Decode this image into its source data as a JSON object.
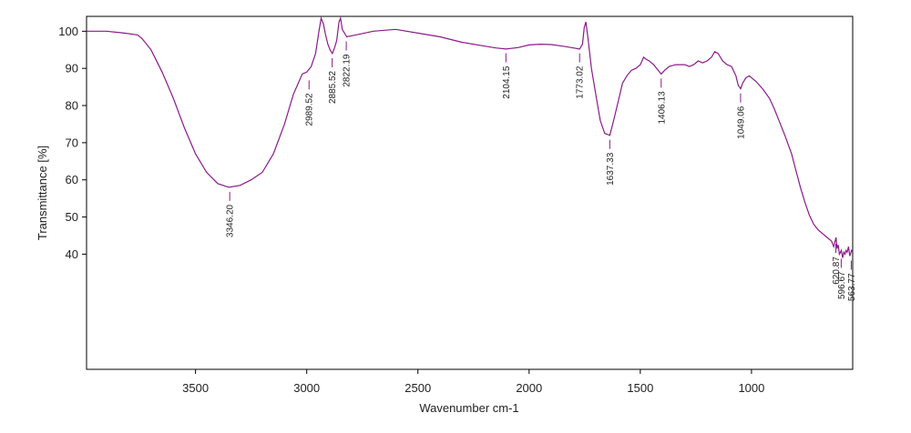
{
  "chart_data": {
    "type": "line",
    "title": "",
    "xlabel": "Wavenumber cm-1",
    "ylabel": "Transmittance [%]",
    "xlim": [
      3990,
      545
    ],
    "ylim": [
      9,
      104
    ],
    "x_reversed": true,
    "grid": false,
    "line_color": "#8b1a89",
    "xticks": [
      3500,
      3000,
      2500,
      2000,
      1500,
      1000
    ],
    "yticks": [
      40,
      50,
      60,
      70,
      80,
      90,
      100
    ],
    "series": [
      {
        "x": [
          3990,
          3900,
          3820,
          3760,
          3740,
          3700,
          3650,
          3600,
          3550,
          3500,
          3450,
          3400,
          3350,
          3300,
          3250,
          3200,
          3150,
          3100,
          3060,
          3020,
          3000,
          2980,
          2960,
          2945,
          2935,
          2925,
          2915,
          2905,
          2895,
          2885,
          2875,
          2865,
          2855,
          2848,
          2840,
          2820,
          2780,
          2700,
          2600,
          2500,
          2400,
          2300,
          2200,
          2150,
          2104,
          2050,
          2000,
          1950,
          1900,
          1850,
          1800,
          1773,
          1760,
          1752,
          1745,
          1735,
          1720,
          1700,
          1680,
          1660,
          1637,
          1620,
          1600,
          1580,
          1560,
          1540,
          1520,
          1500,
          1485,
          1475,
          1460,
          1440,
          1420,
          1406,
          1390,
          1370,
          1340,
          1300,
          1280,
          1260,
          1240,
          1220,
          1200,
          1180,
          1165,
          1150,
          1130,
          1110,
          1090,
          1070,
          1060,
          1049,
          1040,
          1025,
          1010,
          1000,
          980,
          950,
          920,
          900,
          880,
          850,
          820,
          800,
          780,
          760,
          740,
          720,
          700,
          680,
          660,
          640,
          630,
          620,
          615,
          610,
          605,
          600,
          596,
          590,
          585,
          580,
          575,
          570,
          564,
          558,
          550,
          545
        ],
        "y": [
          100,
          100,
          99.5,
          99,
          98,
          95,
          89,
          82,
          74,
          67,
          62,
          59,
          58,
          58.5,
          60,
          62,
          67,
          75,
          83,
          88.5,
          89,
          90.5,
          94,
          100,
          103.5,
          102,
          99,
          96.5,
          95,
          94,
          95.5,
          97.5,
          102.5,
          103.5,
          100.5,
          98.5,
          99,
          100,
          100.5,
          99.5,
          98.5,
          97,
          96,
          95.5,
          95.2,
          95.6,
          96.3,
          96.5,
          96.4,
          96,
          95.5,
          95.2,
          96.5,
          101,
          102.5,
          98,
          90,
          83,
          76,
          72.5,
          72,
          76,
          81,
          86,
          88,
          89.5,
          90,
          91,
          93,
          92.5,
          92,
          91,
          89.5,
          88.5,
          89.5,
          90.5,
          91,
          91,
          90.5,
          91,
          92,
          91.5,
          92,
          93,
          94.5,
          94,
          92,
          91,
          90.5,
          88,
          85.5,
          84.5,
          86,
          87.5,
          88,
          87.5,
          86.5,
          84.5,
          82,
          79.5,
          76.5,
          72,
          67,
          62.5,
          58,
          54,
          50.5,
          48,
          46.5,
          45.5,
          44.5,
          43.5,
          42,
          44.5,
          41.5,
          42.5,
          40,
          40.5,
          41,
          39,
          40.5,
          40,
          41,
          40.5,
          42,
          39.5,
          41,
          40.5
        ]
      }
    ],
    "peak_labels": [
      {
        "x": 3346.2,
        "label": "3346.20",
        "y_tip": 57.5
      },
      {
        "x": 2989.52,
        "label": "2989.52",
        "y_tip": 87.5
      },
      {
        "x": 2885.52,
        "label": "2885.52",
        "y_tip": 93.5
      },
      {
        "x": 2822.19,
        "label": "2822.19",
        "y_tip": 98
      },
      {
        "x": 2104.15,
        "label": "2104.15",
        "y_tip": 94.8
      },
      {
        "x": 1773.02,
        "label": "1773.02",
        "y_tip": 94.8
      },
      {
        "x": 1637.33,
        "label": "1637.33",
        "y_tip": 71.5
      },
      {
        "x": 1406.13,
        "label": "1406.13",
        "y_tip": 88
      },
      {
        "x": 1049.06,
        "label": "1049.06",
        "y_tip": 84
      },
      {
        "x": 620.87,
        "label": "620.87",
        "y_tip": 43.5
      },
      {
        "x": 596.67,
        "label": "596.67",
        "y_tip": 39.5
      },
      {
        "x": 563.77,
        "label": "563.77",
        "y_tip": 39
      }
    ]
  }
}
